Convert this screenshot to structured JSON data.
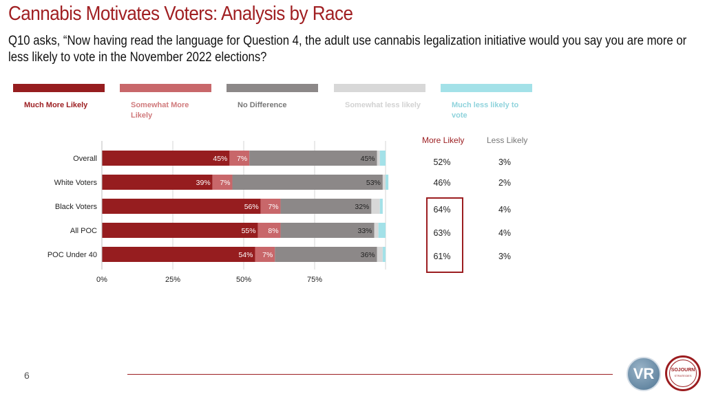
{
  "title": "Cannabis Motivates Voters: Analysis by Race",
  "question": "Q10 asks, “Now having read the language for Question 4, the adult use cannabis legalization initiative would you say you are more or less likely to vote in the November 2022 elections?",
  "colors": {
    "title": "#a01f22",
    "much_more": "#961d1f",
    "somewhat_more": "#c8676a",
    "no_diff": "#8c8888",
    "somewhat_less": "#d8d8d8",
    "much_less": "#a3e1e8",
    "more_likely_header": "#9b1c1f",
    "less_likely_header": "#777777"
  },
  "legend": [
    {
      "label": "Much More Likely",
      "color": "#961d1f",
      "text_color": "#9b1c1f"
    },
    {
      "label": "Somewhat More Likely",
      "color": "#c8676a",
      "text_color": "#d07a7c"
    },
    {
      "label": "No Difference",
      "color": "#8c8888",
      "text_color": "#777777"
    },
    {
      "label": "Somewhat less likely",
      "color": "#d8d8d8",
      "text_color": "#d2d2d2"
    },
    {
      "label": "Much less likely to vote",
      "color": "#a3e1e8",
      "text_color": "#8fd3dc"
    }
  ],
  "chart_data": {
    "type": "bar",
    "orientation": "horizontal",
    "stacked": true,
    "categories": [
      "Overall",
      "White Voters",
      "Black Voters",
      "All POC",
      "POC Under 40"
    ],
    "series": [
      {
        "name": "Much More Likely",
        "values": [
          45,
          39,
          56,
          55,
          54
        ],
        "labels": [
          "45%",
          "39%",
          "56%",
          "55%",
          "54%"
        ]
      },
      {
        "name": "Somewhat More Likely",
        "values": [
          7,
          7,
          7,
          8,
          7
        ],
        "labels": [
          "7%",
          "7%",
          "7%",
          "8%",
          "7%"
        ]
      },
      {
        "name": "No Difference",
        "values": [
          45,
          53,
          32,
          33,
          36
        ],
        "labels": [
          "45%",
          "53%",
          "32%",
          "33%",
          "36%"
        ]
      },
      {
        "name": "Somewhat less likely",
        "values": [
          1,
          1,
          3,
          1.5,
          2
        ],
        "labels": [
          "",
          "",
          "",
          "",
          ""
        ]
      },
      {
        "name": "Much less likely to vote",
        "values": [
          2,
          1,
          1,
          2.5,
          1
        ],
        "labels": [
          "",
          "",
          "",
          "",
          ""
        ]
      }
    ],
    "x_ticks": [
      "0%",
      "25%",
      "50%",
      "75%"
    ],
    "xlim": [
      0,
      100
    ],
    "grid": true
  },
  "summary": {
    "more_header": "More Likely",
    "less_header": "Less Likely",
    "rows": [
      {
        "more": "52%",
        "less": "3%"
      },
      {
        "more": "46%",
        "less": "2%"
      },
      {
        "more": "64%",
        "less": "4%"
      },
      {
        "more": "63%",
        "less": "4%"
      },
      {
        "more": "61%",
        "less": "3%"
      }
    ]
  },
  "page_number": "6",
  "logos": {
    "vr": "VR",
    "sojourn": "SOJOURN",
    "sojourn_sub": "STRATEGIES"
  }
}
